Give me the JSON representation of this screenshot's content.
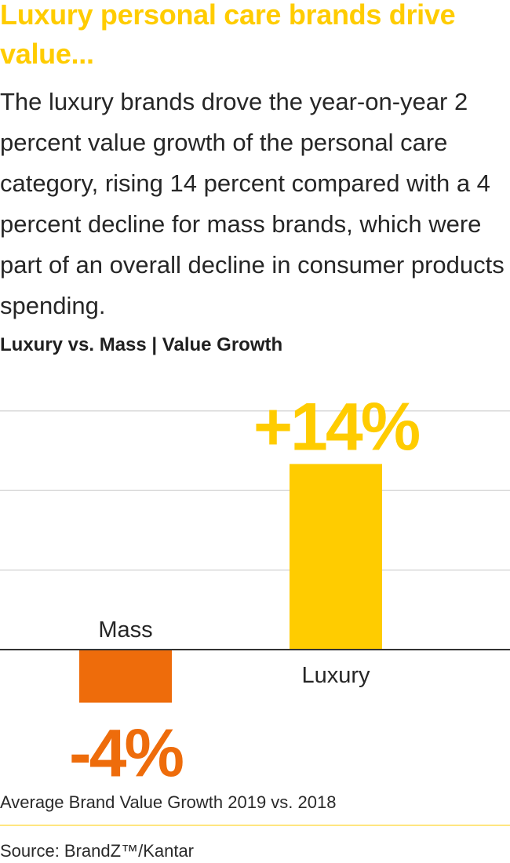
{
  "title": "Luxury personal care brands drive value...",
  "body": "The luxury brands drove the year-on-year 2 percent value growth of the personal care category, rising 14 percent compared with a 4 percent decline for mass brands, which were part of an overall decline in consumer products spending.",
  "subtitle": "Luxury vs. Mass | Value Growth",
  "caption": "Average Brand Value Growth 2019 vs. 2018",
  "source": "Source: BrandZ™/Kantar",
  "colors": {
    "title": "#ffcc00",
    "luxury": "#ffcc00",
    "mass": "#ee6c0b",
    "gridline": "#d9d9d9",
    "baseline": "#333333"
  },
  "chart_data": {
    "type": "bar",
    "title": "Luxury vs. Mass | Value Growth",
    "categories": [
      "Mass",
      "Luxury"
    ],
    "values": [
      -4,
      14
    ],
    "value_labels": [
      "-4%",
      "+14%"
    ],
    "unit": "%",
    "ylim": [
      -5,
      16
    ],
    "gridlines": [
      6,
      12,
      18
    ],
    "xlabel": "",
    "ylabel": "",
    "legend": "none"
  }
}
